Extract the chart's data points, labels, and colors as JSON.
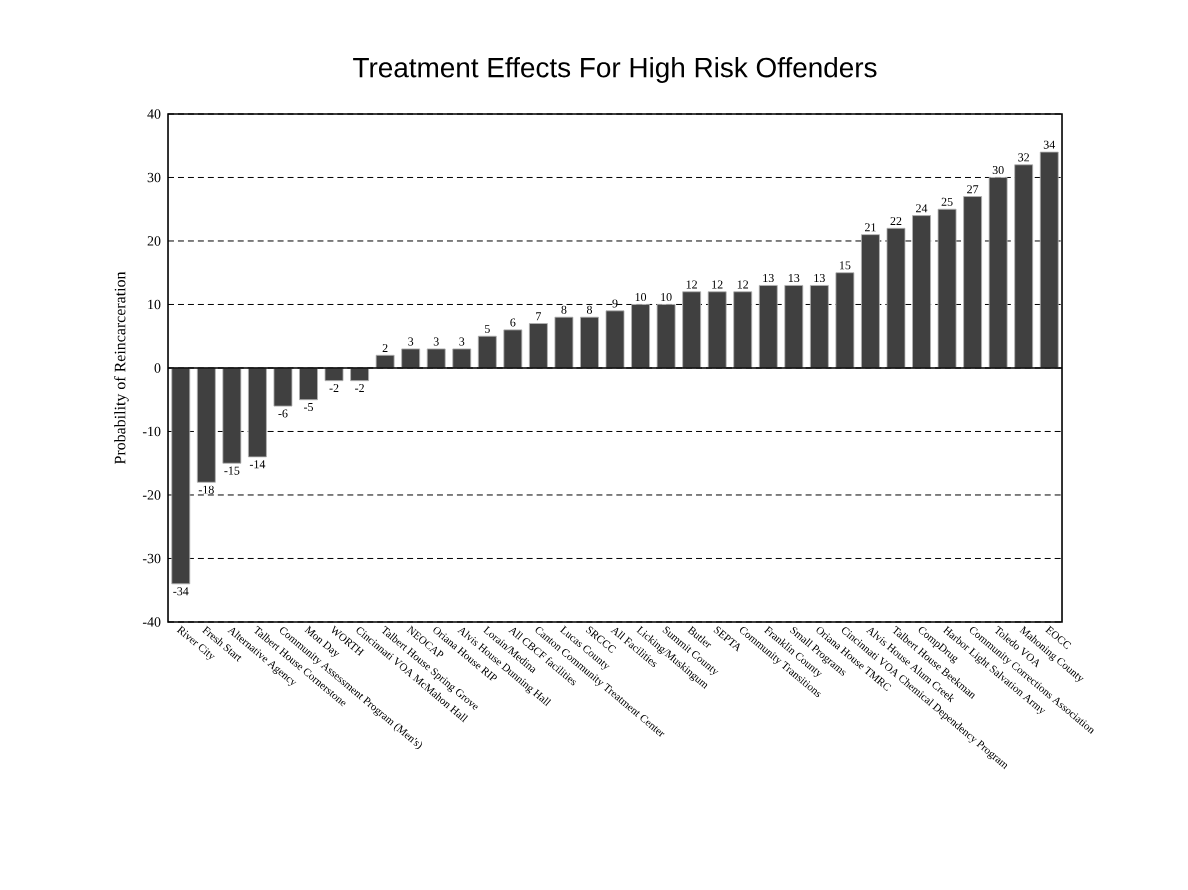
{
  "chart_data": {
    "type": "bar",
    "title": "Treatment Effects For High Risk Offenders",
    "ylabel": "Probability of Reincarceration",
    "categories": [
      "River City",
      "Fresh Start",
      "Alternative Agency",
      "Talbert House Cornerstone",
      "Community Assessment Program (Men's)",
      "Mon Day",
      "WORTH",
      "Cincinnati VOA McMahon Hall",
      "Talbert House Spring Grove",
      "NEOCAP",
      "Oriana House RIP",
      "Alvis House Dunning Hall",
      "Lorain/Medina",
      "All CBCF facilities",
      "Canton Community Treatment Center",
      "Lucas County",
      "SRCCC",
      "All Facilities",
      "Licking/Muskingum",
      "Summit County",
      "Butler",
      "SEPTA",
      "Community Transitions",
      "Franklin County",
      "Small Programs",
      "Oriana House TMRC",
      "Cincinnati VOA Chemical Dependency Program",
      "Alvis House Alum Creek",
      "Talbert House Beekman",
      "CompDrug",
      "Harbor Light Salvation Army",
      "Community Corrections Association",
      "Toledo VOA",
      "Mahoning County",
      "EOCC"
    ],
    "values": [
      -34,
      -18,
      -15,
      -14,
      -6,
      -5,
      -2,
      -2,
      2,
      3,
      3,
      3,
      5,
      6,
      7,
      8,
      8,
      9,
      10,
      10,
      12,
      12,
      12,
      13,
      13,
      13,
      15,
      21,
      22,
      24,
      25,
      27,
      30,
      32,
      34
    ],
    "color": "#404040",
    "data_labels": true,
    "grid": "y",
    "ylim": [
      -40,
      40
    ],
    "yticks": [
      -40,
      -30,
      -20,
      -10,
      0,
      10,
      20,
      30,
      40
    ]
  }
}
